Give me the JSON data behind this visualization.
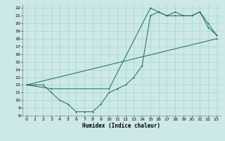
{
  "xlabel": "Humidex (Indice chaleur)",
  "bg_color": "#cce8e8",
  "line_color": "#1a6b60",
  "grid_color": "#aad4d0",
  "xlim": [
    -0.5,
    23.5
  ],
  "ylim": [
    8,
    22.5
  ],
  "xticks": [
    0,
    1,
    2,
    3,
    4,
    5,
    6,
    7,
    8,
    9,
    10,
    11,
    12,
    13,
    14,
    15,
    16,
    17,
    18,
    19,
    20,
    21,
    22,
    23
  ],
  "yticks": [
    8,
    9,
    10,
    11,
    12,
    13,
    14,
    15,
    16,
    17,
    18,
    19,
    20,
    21,
    22
  ],
  "line1_x": [
    0,
    1,
    2,
    3,
    4,
    5,
    6,
    7,
    8,
    9,
    10,
    11,
    12,
    13,
    14,
    15,
    16,
    17,
    18,
    19,
    20,
    21,
    22,
    23
  ],
  "line1_y": [
    12,
    12,
    12,
    11,
    10,
    9.5,
    8.5,
    8.5,
    8.5,
    9.5,
    11,
    11.5,
    12,
    13,
    14.5,
    21,
    21.5,
    21,
    21.5,
    21,
    21,
    21.5,
    19.5,
    18.5
  ],
  "line2_x": [
    0,
    3,
    10,
    15,
    16,
    17,
    18,
    19,
    20,
    21,
    22,
    23
  ],
  "line2_y": [
    12,
    11.5,
    11.5,
    22,
    21.5,
    21,
    21,
    21,
    21,
    21.5,
    20,
    18.5
  ],
  "line3_x": [
    0,
    23
  ],
  "line3_y": [
    12,
    18
  ]
}
